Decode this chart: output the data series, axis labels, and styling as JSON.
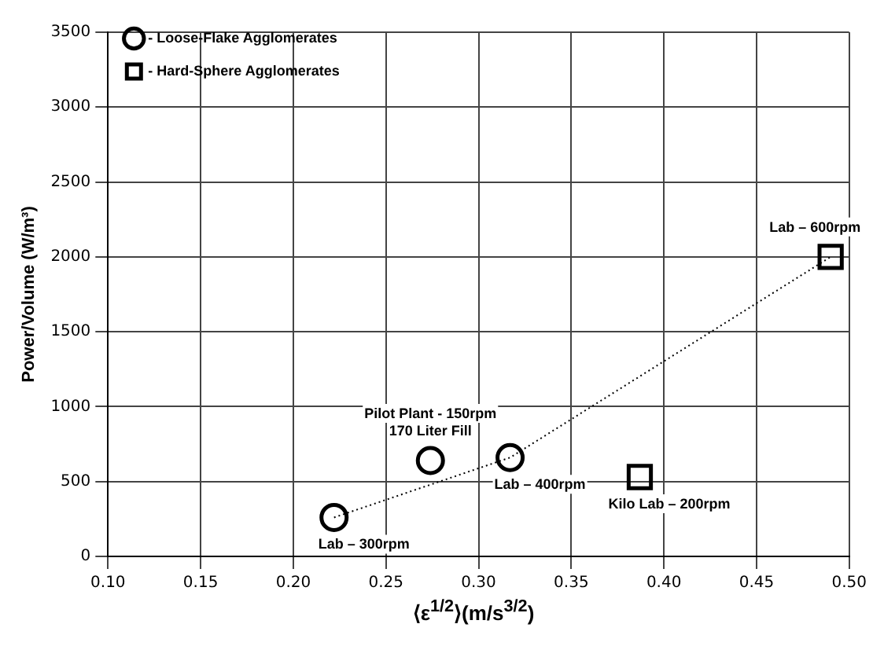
{
  "chart_data": {
    "type": "scatter",
    "xlabel": "⟨ε$^{1/2}$⟩(m/s$^{3/2}$)",
    "ylabel": "Power/Volume (W/m³)",
    "series": [
      {
        "name": "- Loose-Flake Agglomerates",
        "color": "#000000",
        "marker": "circle",
        "x": [
          0.222,
          0.274,
          0.317
        ],
        "values": [
          260,
          640,
          660
        ]
      },
      {
        "name": "- Hard-Sphere Agglomerates",
        "color": "#000000",
        "marker": "square",
        "x": [
          0.387,
          0.49
        ],
        "values": [
          530,
          2000
        ]
      },
      {
        "type": "line",
        "color": "#000000",
        "line_style": "dotted",
        "marker": "none",
        "x": [
          0.222,
          0.317,
          0.49
        ],
        "values": [
          260,
          660,
          2000
        ]
      }
    ],
    "annotations": [
      {
        "text": "Lab – 300rpm",
        "x": 0.222,
        "y": 260
      },
      {
        "text": "Pilot Plant - 150rpm\n170 Liter Fill",
        "x": 0.274,
        "y": 640
      },
      {
        "text": "Lab – 400rpm",
        "x": 0.317,
        "y": 660
      },
      {
        "text": "Kilo Lab – 200rpm",
        "x": 0.387,
        "y": 530
      },
      {
        "text": "Lab – 600rpm",
        "x": 0.49,
        "y": 2000
      }
    ],
    "xlim": [
      0.1,
      0.5
    ],
    "xticks": [
      {
        "value": 0.1,
        "label": "0.10"
      },
      0.15,
      {
        "value": 0.2,
        "label": "0.20"
      },
      0.25,
      {
        "value": 0.3,
        "label": "0.30"
      },
      0.35,
      {
        "value": 0.4,
        "label": "0.40"
      },
      0.45,
      {
        "value": 0.5,
        "label": "0.50"
      }
    ],
    "ylim": [
      0,
      3500
    ],
    "yticks": [
      0,
      500,
      1000,
      1500,
      2000,
      2500,
      3000,
      3500
    ],
    "grid": true,
    "legend": "top left"
  }
}
